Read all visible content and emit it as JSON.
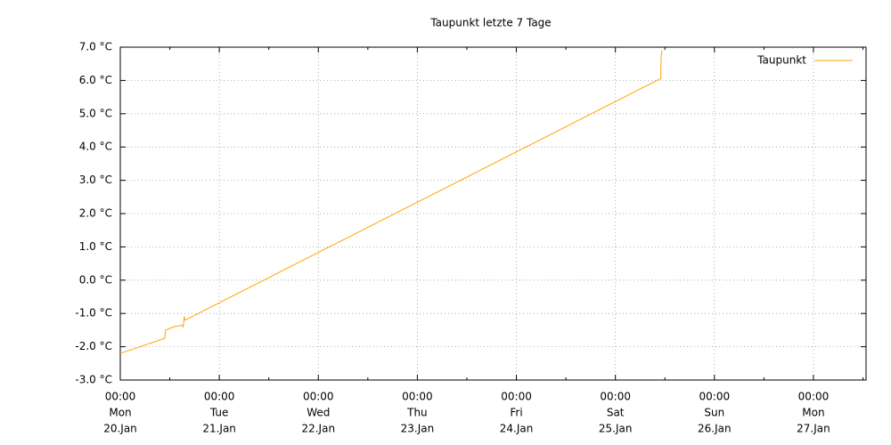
{
  "chart_data": {
    "type": "line",
    "title": "Taupunkt letzte 7 Tage",
    "x": [
      "20.Jan 00:00",
      "20.Jan 10:45",
      "20.Jan 11:00",
      "20.Jan 13:00",
      "20.Jan 15:00",
      "20.Jan 15:15",
      "20.Jan 15:30",
      "20.Jan 15:45",
      "25.Jan 11:00",
      "25.Jan 11:05",
      "25.Jan 11:15"
    ],
    "series": [
      {
        "name": "Taupunkt",
        "color": "#ffa500",
        "values": [
          -2.2,
          -1.75,
          -1.5,
          -1.4,
          -1.35,
          -1.4,
          -1.1,
          -1.2,
          6.06,
          6.7,
          6.9
        ]
      }
    ],
    "xlim": [
      "20.Jan 00:00",
      "27.Jan 12:45"
    ],
    "xticks": [
      {
        "value": "20.Jan 00:00",
        "label": [
          "00:00",
          "Mon",
          "20.Jan"
        ]
      },
      {
        "value": "21.Jan 00:00",
        "label": [
          "00:00",
          "Tue",
          "21.Jan"
        ]
      },
      {
        "value": "22.Jan 00:00",
        "label": [
          "00:00",
          "Wed",
          "22.Jan"
        ]
      },
      {
        "value": "23.Jan 00:00",
        "label": [
          "00:00",
          "Thu",
          "23.Jan"
        ]
      },
      {
        "value": "24.Jan 00:00",
        "label": [
          "00:00",
          "Fri",
          "24.Jan"
        ]
      },
      {
        "value": "25.Jan 00:00",
        "label": [
          "00:00",
          "Sat",
          "25.Jan"
        ]
      },
      {
        "value": "26.Jan 00:00",
        "label": [
          "00:00",
          "Sun",
          "26.Jan"
        ]
      },
      {
        "value": "27.Jan 00:00",
        "label": [
          "00:00",
          "Mon",
          "27.Jan"
        ]
      }
    ],
    "ylim": [
      -3,
      7
    ],
    "yticks": [
      {
        "value": -3,
        "label": "-3.0 °C"
      },
      {
        "value": -2,
        "label": "-2.0 °C"
      },
      {
        "value": -1,
        "label": "-1.0 °C"
      },
      {
        "value": 0,
        "label": "0.0 °C"
      },
      {
        "value": 1,
        "label": "1.0 °C"
      },
      {
        "value": 2,
        "label": "2.0 °C"
      },
      {
        "value": 3,
        "label": "3.0 °C"
      },
      {
        "value": 4,
        "label": "4.0 °C"
      },
      {
        "value": 5,
        "label": "5.0 °C"
      },
      {
        "value": 6,
        "label": "6.0 °C"
      },
      {
        "value": 7,
        "label": "7.0 °C"
      }
    ],
    "grid": true,
    "legend": "top-right"
  }
}
